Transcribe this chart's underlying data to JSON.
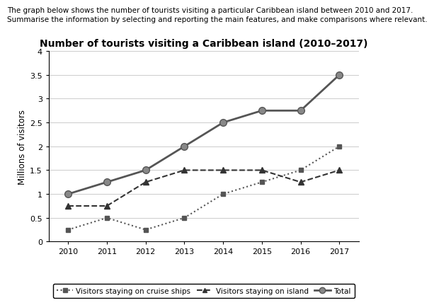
{
  "title": "Number of tourists visiting a Caribbean island (2010–2017)",
  "subtitle_line1": "The graph below shows the number of tourists visiting a particular Caribbean island between 2010 and 2017.",
  "subtitle_line2": "Summarise the information by selecting and reporting the main features, and make comparisons where relevant.",
  "ylabel": "Millions of visitors",
  "years": [
    2010,
    2011,
    2012,
    2013,
    2014,
    2015,
    2016,
    2017
  ],
  "cruise_ships": [
    0.25,
    0.5,
    0.25,
    0.5,
    1.0,
    1.25,
    1.5,
    2.0
  ],
  "island": [
    0.75,
    0.75,
    1.25,
    1.5,
    1.5,
    1.5,
    1.25,
    1.5
  ],
  "total": [
    1.0,
    1.25,
    1.5,
    2.0,
    2.5,
    2.75,
    2.75,
    3.5
  ],
  "ylim": [
    0,
    4
  ],
  "yticks": [
    0,
    0.5,
    1.0,
    1.5,
    2.0,
    2.5,
    3.0,
    3.5,
    4.0
  ],
  "ytick_labels": [
    "0",
    "0.5",
    "1",
    "1.5",
    "2",
    "2.5",
    "3",
    "3.5",
    "4"
  ],
  "cruise_color": "#555555",
  "island_color": "#333333",
  "total_color": "#888888",
  "line_color": "#555555",
  "title_fontsize": 10,
  "title_fontweight": "bold",
  "subtitle_fontsize": 7.5,
  "axis_fontsize": 8.5,
  "tick_fontsize": 8,
  "legend_fontsize": 7.5
}
